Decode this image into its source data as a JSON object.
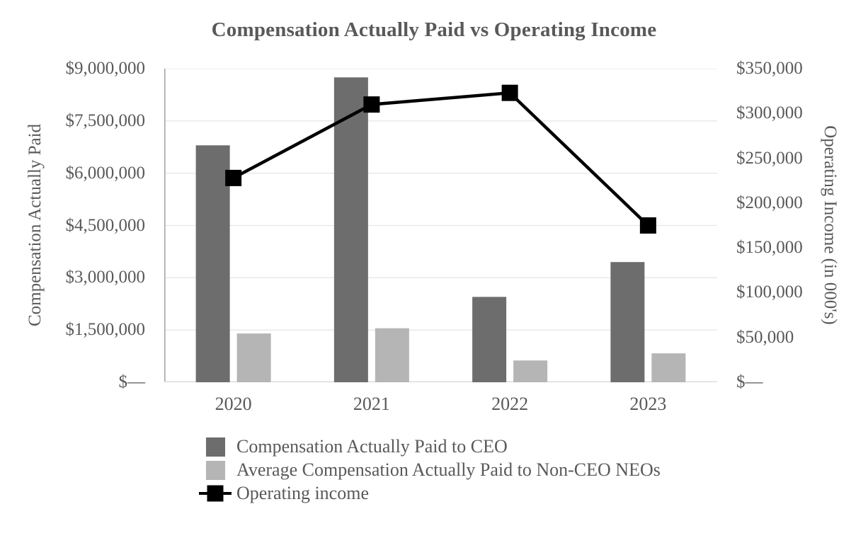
{
  "chart_data": {
    "type": "combo-bar-line",
    "title": "Compensation Actually Paid vs Operating Income",
    "categories": [
      "2020",
      "2021",
      "2022",
      "2023"
    ],
    "series": [
      {
        "name": "Compensation Actually Paid to CEO",
        "type": "bar",
        "axis": "left",
        "color": "#6d6d6d",
        "values": [
          6800000,
          8750000,
          2450000,
          3450000
        ]
      },
      {
        "name": "Average Compensation Actually Paid to Non-CEO NEOs",
        "type": "bar",
        "axis": "left",
        "color": "#b5b5b5",
        "values": [
          1400000,
          1550000,
          625000,
          830000
        ]
      },
      {
        "name": "Operating income",
        "type": "line",
        "axis": "right",
        "color": "#000000",
        "marker": "square",
        "values": [
          228000,
          310000,
          323000,
          175000
        ]
      }
    ],
    "left_axis": {
      "title": "Compensation Actually Paid",
      "min": 0,
      "max": 9000000,
      "tick_labels": [
        "$9,000,000",
        "$7,500,000",
        "$6,000,000",
        "$4,500,000",
        "$3,000,000",
        "$1,500,000",
        "$—"
      ]
    },
    "right_axis": {
      "title": "Operating Income (in 000's)",
      "min": 0,
      "max": 350000,
      "tick_labels": [
        "$350,000",
        "$300,000",
        "$250,000",
        "$200,000",
        "$150,000",
        "$100,000",
        "$50,000",
        "$—"
      ]
    },
    "grid": true,
    "legend_position": "bottom-left",
    "colors": {
      "text": "#595959",
      "gridline": "#e7e7e7",
      "left_axis_line": "#a6a6a6",
      "bottom_axis_line": "#d9d9d9",
      "bar_ceo": "#6d6d6d",
      "bar_neo": "#b5b5b5",
      "line": "#000000",
      "background": "#ffffff"
    }
  },
  "legend": {
    "items": [
      {
        "label": "Compensation Actually Paid to CEO",
        "swatch": "dark-gray-square"
      },
      {
        "label": "Average Compensation Actually Paid to Non-CEO NEOs",
        "swatch": "light-gray-square"
      },
      {
        "label": "Operating income",
        "swatch": "black-square-on-line"
      }
    ]
  }
}
